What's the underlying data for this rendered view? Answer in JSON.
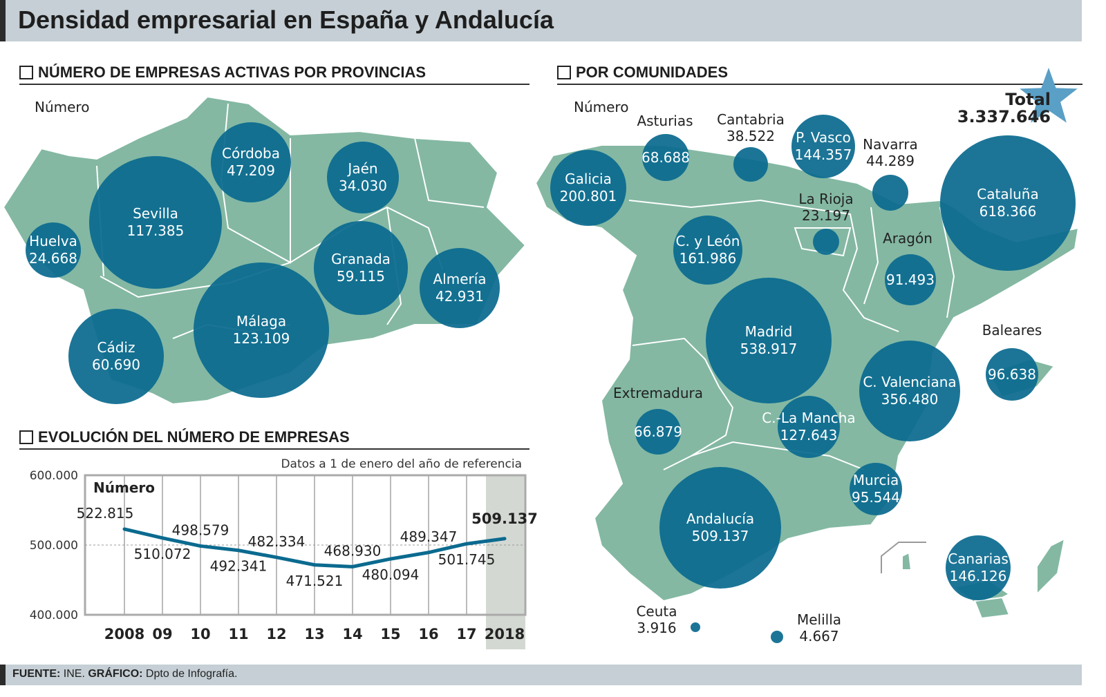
{
  "title": "Densidad empresarial en España y Andalucía",
  "sections": {
    "provincias": "NÚMERO DE EMPRESAS ACTIVAS POR PROVINCIAS",
    "comunidades": "POR COMUNIDADES",
    "evolucion": "EVOLUCIÓN DEL NÚMERO DE EMPRESAS"
  },
  "unit_label": "Número",
  "colors": {
    "bubble": "#0b6a8f",
    "map": "#84b8a3",
    "total_star": "#5a9fc6",
    "highlight": "#d4d8d3"
  },
  "total": {
    "label": "Total",
    "value": "3.337.646",
    "icon": "star-icon"
  },
  "footer": {
    "source_label": "FUENTE:",
    "source": "INE.",
    "graphic_label": "GRÁFICO:",
    "graphic": "Dpto de Infografía."
  },
  "chart_data": [
    {
      "type": "bubble",
      "title": "NÚMERO DE EMPRESAS ACTIVAS POR PROVINCIAS",
      "items": [
        {
          "name": "Córdoba",
          "value": "47.209"
        },
        {
          "name": "Jaén",
          "value": "34.030"
        },
        {
          "name": "Sevilla",
          "value": "117.385"
        },
        {
          "name": "Huelva",
          "value": "24.668"
        },
        {
          "name": "Granada",
          "value": "59.115"
        },
        {
          "name": "Almería",
          "value": "42.931"
        },
        {
          "name": "Málaga",
          "value": "123.109"
        },
        {
          "name": "Cádiz",
          "value": "60.690"
        }
      ]
    },
    {
      "type": "bubble",
      "title": "POR COMUNIDADES",
      "items": [
        {
          "name": "Galicia",
          "value": "200.801"
        },
        {
          "name": "Asturias",
          "value": "68.688"
        },
        {
          "name": "Cantabria",
          "value": "38.522"
        },
        {
          "name": "P. Vasco",
          "value": "144.357"
        },
        {
          "name": "Navarra",
          "value": "44.289"
        },
        {
          "name": "La Rioja",
          "value": "23.197"
        },
        {
          "name": "C. y León",
          "value": "161.986"
        },
        {
          "name": "Aragón",
          "value": "91.493"
        },
        {
          "name": "Cataluña",
          "value": "618.366"
        },
        {
          "name": "Madrid",
          "value": "538.917"
        },
        {
          "name": "Baleares",
          "value": "96.638"
        },
        {
          "name": "C. Valenciana",
          "value": "356.480"
        },
        {
          "name": "Extremadura",
          "value": "66.879"
        },
        {
          "name": "C.-La Mancha",
          "value": "127.643"
        },
        {
          "name": "Murcia",
          "value": "95.544"
        },
        {
          "name": "Andalucía",
          "value": "509.137"
        },
        {
          "name": "Canarias",
          "value": "146.126"
        },
        {
          "name": "Ceuta",
          "value": "3.916"
        },
        {
          "name": "Melilla",
          "value": "4.667"
        }
      ]
    },
    {
      "type": "line",
      "title": "EVOLUCIÓN DEL NÚMERO DE EMPRESAS",
      "note": "Datos a 1 de enero del año de referencia",
      "ylabel": "Número",
      "categories": [
        "2008",
        "09",
        "10",
        "11",
        "12",
        "13",
        "14",
        "15",
        "16",
        "17",
        "2018"
      ],
      "values": [
        522815,
        510072,
        498579,
        492341,
        482334,
        471521,
        468930,
        480094,
        489347,
        501745,
        509137
      ],
      "value_labels": [
        "522.815",
        "510.072",
        "498.579",
        "492.341",
        "482.334",
        "471.521",
        "468.930",
        "480.094",
        "489.347",
        "501.745",
        "509.137"
      ],
      "ylim": [
        400000,
        600000
      ],
      "yticks": [
        "400.000",
        "500.000",
        "600.000"
      ],
      "grid": true,
      "highlight": "2018"
    }
  ]
}
